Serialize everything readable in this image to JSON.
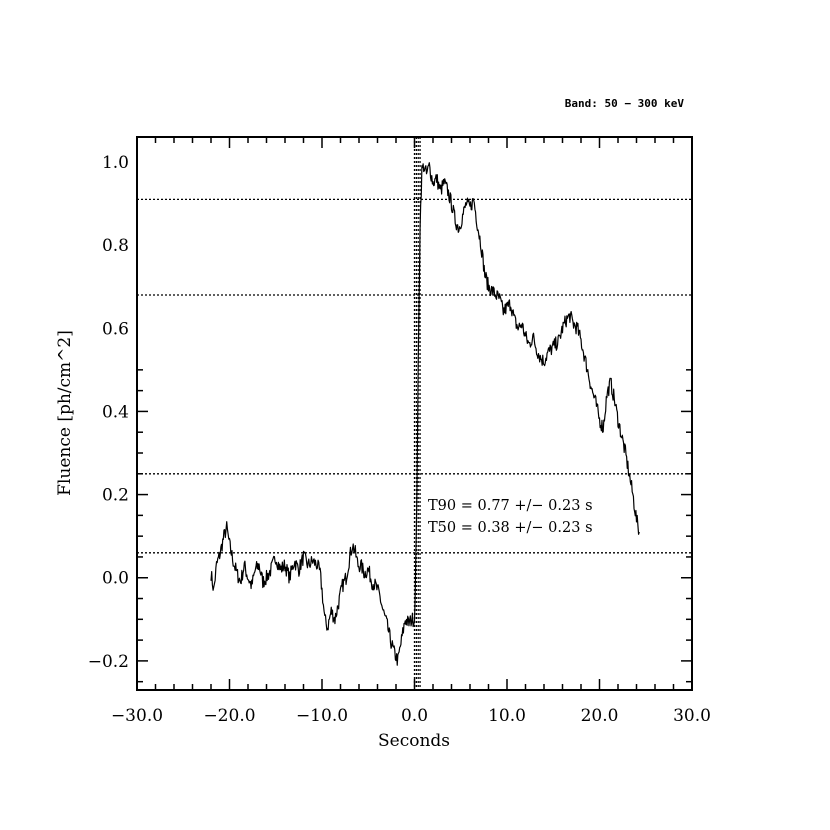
{
  "chart_data": {
    "type": "line",
    "title": "",
    "band_label": "Band: 50 − 300 keV",
    "xlabel": "Seconds",
    "ylabel": "Fluence [ph/cm^2]",
    "xlim": [
      -30,
      30
    ],
    "ylim": [
      -0.27,
      1.06
    ],
    "x_ticks": [
      -30,
      -20,
      -10,
      0,
      10,
      20,
      30
    ],
    "x_tick_labels": [
      "−30.0",
      "−20.0",
      "−10.0",
      "0.0",
      "10.0",
      "20.0",
      "30.0"
    ],
    "y_ticks": [
      -0.2,
      0.0,
      0.2,
      0.4,
      0.6,
      0.8,
      1.0
    ],
    "y_tick_labels": [
      "−0.2",
      "0.0",
      "0.2",
      "0.4",
      "0.6",
      "0.8",
      "1.0"
    ],
    "grid": false,
    "horizontal_reference_lines": [
      0.06,
      0.25,
      0.68,
      0.91
    ],
    "vertical_reference_lines": [
      0.0,
      0.2,
      0.4,
      0.6
    ],
    "annotations": [
      "T90 = 0.77 +/− 0.23 s",
      "T50 = 0.38 +/− 0.23 s"
    ],
    "series": [
      {
        "x": [
          -22.0,
          -21.7,
          -21.4,
          -21.0,
          -20.6,
          -20.3,
          -20.0,
          -19.6,
          -19.2,
          -18.8,
          -18.4,
          -18.0,
          -17.6,
          -17.2,
          -16.8,
          -16.4,
          -16.0,
          -15.5,
          -15.0,
          -14.5,
          -14.0,
          -13.5,
          -13.0,
          -12.5,
          -12.0,
          -11.5,
          -11.0,
          -10.5,
          -10.2,
          -10.0,
          -9.7,
          -9.4,
          -9.0,
          -8.6,
          -8.2,
          -7.8,
          -7.4,
          -7.0,
          -6.7,
          -6.4,
          -6.1,
          -5.8,
          -5.4,
          -5.0,
          -4.6,
          -4.2,
          -3.8,
          -3.4,
          -3.0,
          -2.6,
          -2.2,
          -1.8,
          -1.4,
          -1.0,
          -0.6,
          -0.3,
          0.0,
          0.2,
          0.4,
          0.6,
          0.8,
          1.0,
          1.3,
          1.6,
          2.0,
          2.4,
          2.8,
          3.2,
          3.6,
          4.0,
          4.4,
          4.8,
          5.2,
          5.6,
          6.0,
          6.4,
          6.8,
          7.2,
          7.6,
          8.0,
          8.4,
          8.8,
          9.2,
          9.6,
          10.0,
          10.4,
          10.8,
          11.2,
          11.6,
          12.0,
          12.4,
          12.8,
          13.2,
          13.6,
          14.0,
          14.4,
          14.8,
          15.2,
          15.6,
          16.0,
          16.4,
          16.8,
          17.2,
          17.6,
          18.0,
          18.4,
          18.8,
          19.2,
          19.6,
          20.0,
          20.4,
          20.8,
          21.2,
          21.6,
          22.0,
          22.4,
          22.8,
          23.2,
          23.6,
          24.0,
          24.3
        ],
        "y": [
          0.01,
          -0.03,
          0.03,
          0.06,
          0.1,
          0.12,
          0.08,
          0.04,
          0.01,
          -0.01,
          0.03,
          0.0,
          -0.02,
          0.02,
          0.03,
          -0.01,
          0.0,
          0.02,
          0.05,
          0.02,
          0.03,
          0.0,
          0.04,
          0.02,
          0.05,
          0.03,
          0.04,
          0.03,
          0.01,
          -0.03,
          -0.1,
          -0.12,
          -0.08,
          -0.1,
          -0.06,
          -0.02,
          0.0,
          0.05,
          0.08,
          0.06,
          0.03,
          0.03,
          0.01,
          0.02,
          -0.01,
          -0.02,
          -0.04,
          -0.08,
          -0.11,
          -0.15,
          -0.18,
          -0.2,
          -0.15,
          -0.1,
          -0.11,
          -0.1,
          -0.1,
          0.1,
          0.5,
          0.85,
          0.98,
          0.99,
          0.97,
          0.99,
          0.95,
          0.96,
          0.93,
          0.95,
          0.93,
          0.9,
          0.86,
          0.84,
          0.87,
          0.9,
          0.89,
          0.91,
          0.85,
          0.8,
          0.73,
          0.7,
          0.69,
          0.68,
          0.67,
          0.64,
          0.65,
          0.66,
          0.62,
          0.6,
          0.61,
          0.58,
          0.56,
          0.58,
          0.55,
          0.53,
          0.52,
          0.54,
          0.55,
          0.56,
          0.57,
          0.6,
          0.62,
          0.63,
          0.61,
          0.6,
          0.57,
          0.53,
          0.49,
          0.45,
          0.42,
          0.38,
          0.36,
          0.44,
          0.47,
          0.43,
          0.38,
          0.34,
          0.3,
          0.25,
          0.2,
          0.14,
          0.11
        ]
      }
    ]
  }
}
